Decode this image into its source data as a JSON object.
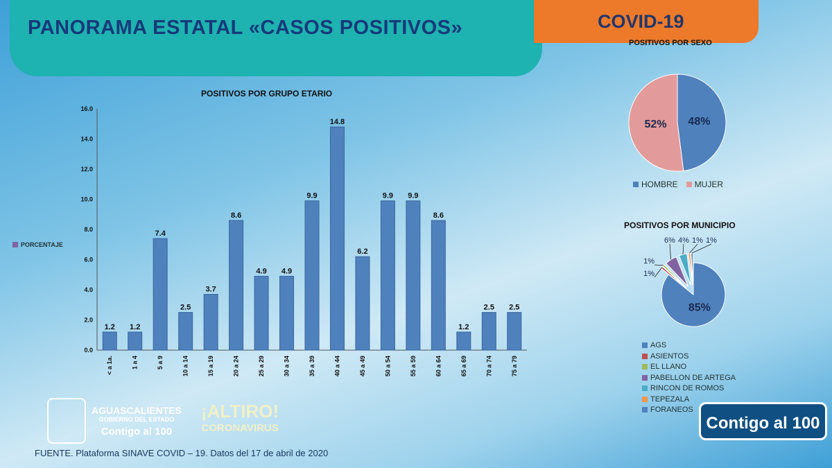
{
  "header": {
    "title": "PANORAMA ESTATAL «CASOS POSITIVOS»",
    "badge": "COVID-19"
  },
  "colors": {
    "bar": "#4f81bd",
    "teal": "#1eb2b0",
    "orange": "#ec7a2a",
    "hombre": "#4f81bd",
    "mujer": "#e39a9a"
  },
  "chart_data": [
    {
      "type": "bar",
      "title": "POSITIVOS POR GRUPO ETARIO",
      "legend": "PORCENTAJE",
      "ylim": [
        0,
        16
      ],
      "yticks": [
        "0.0",
        "2.0",
        "4.0",
        "6.0",
        "8.0",
        "10.0",
        "12.0",
        "14.0",
        "16.0"
      ],
      "categories": [
        "< a 1a.",
        "1 a 4",
        "5 a 9",
        "10 a 14",
        "15 a 19",
        "20 a 24",
        "25 a 29",
        "30 a 34",
        "35 a 39",
        "40 a 44",
        "45 a 49",
        "50 a 54",
        "55 a 59",
        "60 a 64",
        "65 a 69",
        "70 a 74",
        "75 a 79"
      ],
      "values": [
        1.2,
        1.2,
        7.4,
        2.5,
        3.7,
        8.6,
        4.9,
        4.9,
        9.9,
        14.8,
        6.2,
        9.9,
        9.9,
        8.6,
        1.2,
        2.5,
        2.5
      ]
    },
    {
      "type": "pie",
      "title": "POSITIVOS POR SEXO",
      "slices": [
        {
          "name": "HOMBRE",
          "value": 48,
          "label": "48%",
          "color": "#4f81bd"
        },
        {
          "name": "MUJER",
          "value": 52,
          "label": "52%",
          "color": "#e39a9a"
        }
      ]
    },
    {
      "type": "pie",
      "title": "POSITIVOS POR MUNICIPIO",
      "slices": [
        {
          "name": "AGS",
          "value": 85,
          "label": "85%",
          "color": "#4f81bd"
        },
        {
          "name": "ASIENTOS",
          "value": 1,
          "label": "1%",
          "color": "#c0504d"
        },
        {
          "name": "EL LLANO",
          "value": 1,
          "label": "1%",
          "color": "#9bbb59"
        },
        {
          "name": "PABELLON DE ARTEGA",
          "value": 6,
          "label": "6%",
          "color": "#8064a2"
        },
        {
          "name": "RINCON DE ROMOS",
          "value": 4,
          "label": "4%",
          "color": "#4bacc6"
        },
        {
          "name": "TEPEZALA",
          "value": 1,
          "label": "1%",
          "color": "#f79646"
        },
        {
          "name": "FORANEOS",
          "value": 1,
          "label": "1%",
          "color": "#4f81bd"
        }
      ]
    }
  ],
  "footer": {
    "source": "FUENTE. Plataforma SINAVE COVID – 19. Datos del 17 de abril de 2020",
    "logo_state": "AGUASCALIENTES",
    "logo_gov": "GOBIERNO DEL ESTADO",
    "logo_slogan": "Contigo al 100",
    "logo_altiro": "¡ALTIRO!",
    "logo_corona": "CORONAVIRUS",
    "badge": "Contigo al 100"
  }
}
